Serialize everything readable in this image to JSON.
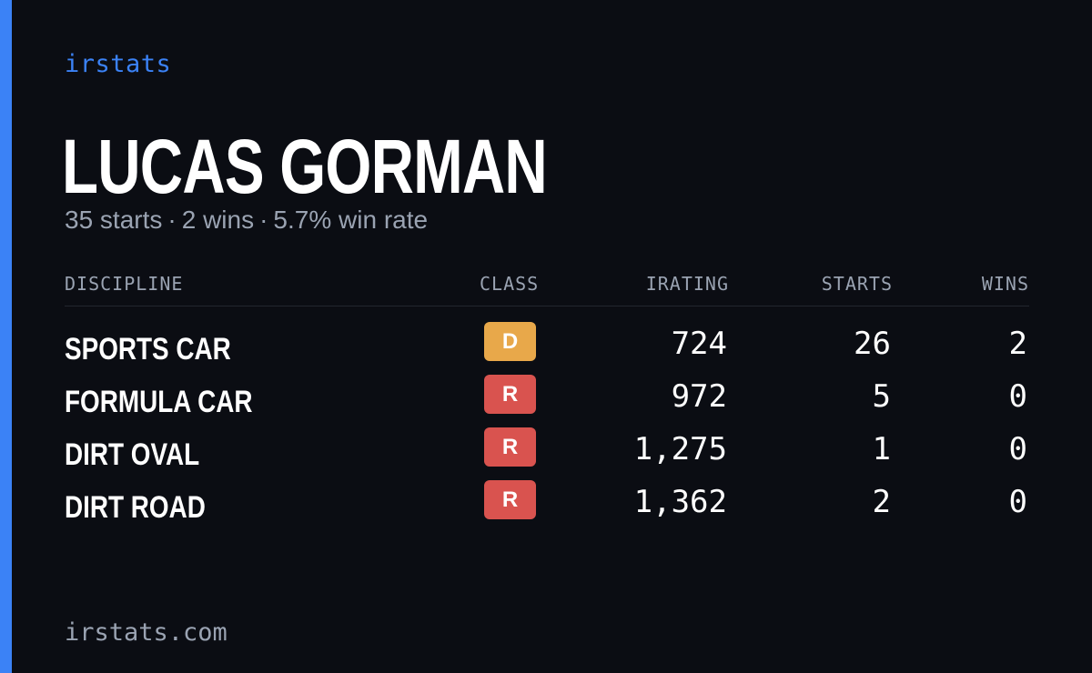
{
  "brand": "irstats",
  "driver": {
    "name": "LUCAS GORMAN",
    "starts_text": "35 starts",
    "wins_text": "2 wins",
    "win_rate_text": "5.7% win rate",
    "separator": "·"
  },
  "table": {
    "headers": {
      "discipline": "DISCIPLINE",
      "class": "CLASS",
      "irating": "IRATING",
      "starts": "STARTS",
      "wins": "WINS"
    },
    "rows": [
      {
        "discipline": "SPORTS CAR",
        "class": "D",
        "class_color": "#e8a84a",
        "irating": "724",
        "starts": "26",
        "wins": "2"
      },
      {
        "discipline": "FORMULA CAR",
        "class": "R",
        "class_color": "#d9534f",
        "irating": "972",
        "starts": "5",
        "wins": "0"
      },
      {
        "discipline": "DIRT OVAL",
        "class": "R",
        "class_color": "#d9534f",
        "irating": "1,275",
        "starts": "1",
        "wins": "0"
      },
      {
        "discipline": "DIRT ROAD",
        "class": "R",
        "class_color": "#d9534f",
        "irating": "1,362",
        "starts": "2",
        "wins": "0"
      }
    ]
  },
  "footer": "irstats.com",
  "colors": {
    "accent": "#3b82f6",
    "background": "#0b0d13",
    "muted_text": "#9aa3b2"
  }
}
